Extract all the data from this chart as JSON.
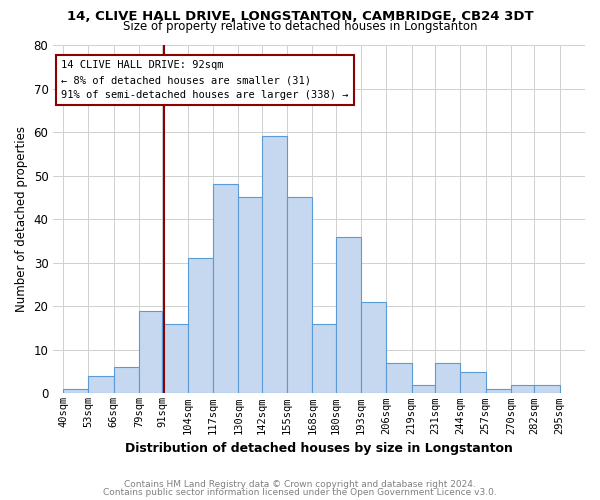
{
  "title1": "14, CLIVE HALL DRIVE, LONGSTANTON, CAMBRIDGE, CB24 3DT",
  "title2": "Size of property relative to detached houses in Longstanton",
  "xlabel": "Distribution of detached houses by size in Longstanton",
  "ylabel": "Number of detached properties",
  "footnote1": "Contains HM Land Registry data © Crown copyright and database right 2024.",
  "footnote2": "Contains public sector information licensed under the Open Government Licence v3.0.",
  "annotation_line1": "14 CLIVE HALL DRIVE: 92sqm",
  "annotation_line2": "← 8% of detached houses are smaller (31)",
  "annotation_line3": "91% of semi-detached houses are larger (338) →",
  "bar_left_edges": [
    40,
    53,
    66,
    79,
    91,
    104,
    117,
    130,
    142,
    155,
    168,
    180,
    193,
    206,
    219,
    231,
    244,
    257,
    270,
    282
  ],
  "bar_heights": [
    1,
    4,
    6,
    19,
    16,
    31,
    48,
    45,
    59,
    45,
    16,
    36,
    21,
    7,
    2,
    7,
    5,
    1,
    2,
    2
  ],
  "bar_widths": [
    13,
    13,
    13,
    12,
    13,
    13,
    13,
    12,
    13,
    13,
    12,
    13,
    13,
    13,
    12,
    13,
    13,
    13,
    12,
    13
  ],
  "tick_labels": [
    "40sqm",
    "53sqm",
    "66sqm",
    "79sqm",
    "91sqm",
    "104sqm",
    "117sqm",
    "130sqm",
    "142sqm",
    "155sqm",
    "168sqm",
    "180sqm",
    "193sqm",
    "206sqm",
    "219sqm",
    "231sqm",
    "244sqm",
    "257sqm",
    "270sqm",
    "282sqm",
    "295sqm"
  ],
  "tick_positions": [
    40,
    53,
    66,
    79,
    91,
    104,
    117,
    130,
    142,
    155,
    168,
    180,
    193,
    206,
    219,
    231,
    244,
    257,
    270,
    282,
    295
  ],
  "bar_color": "#c5d8f0",
  "bar_edge_color": "#5b9bd5",
  "marker_x": 92,
  "marker_color": "#8b0000",
  "xlim": [
    35,
    308
  ],
  "ylim": [
    0,
    80
  ],
  "yticks": [
    0,
    10,
    20,
    30,
    40,
    50,
    60,
    70,
    80
  ],
  "annotation_box_color": "#8b0000",
  "bg_color": "#ffffff",
  "title1_fontsize": 9.5,
  "title2_fontsize": 8.5,
  "ylabel_fontsize": 8.5,
  "xlabel_fontsize": 9,
  "tick_fontsize": 7.5,
  "ytick_fontsize": 8.5,
  "footnote_fontsize": 6.5,
  "footnote_color": "#808080"
}
